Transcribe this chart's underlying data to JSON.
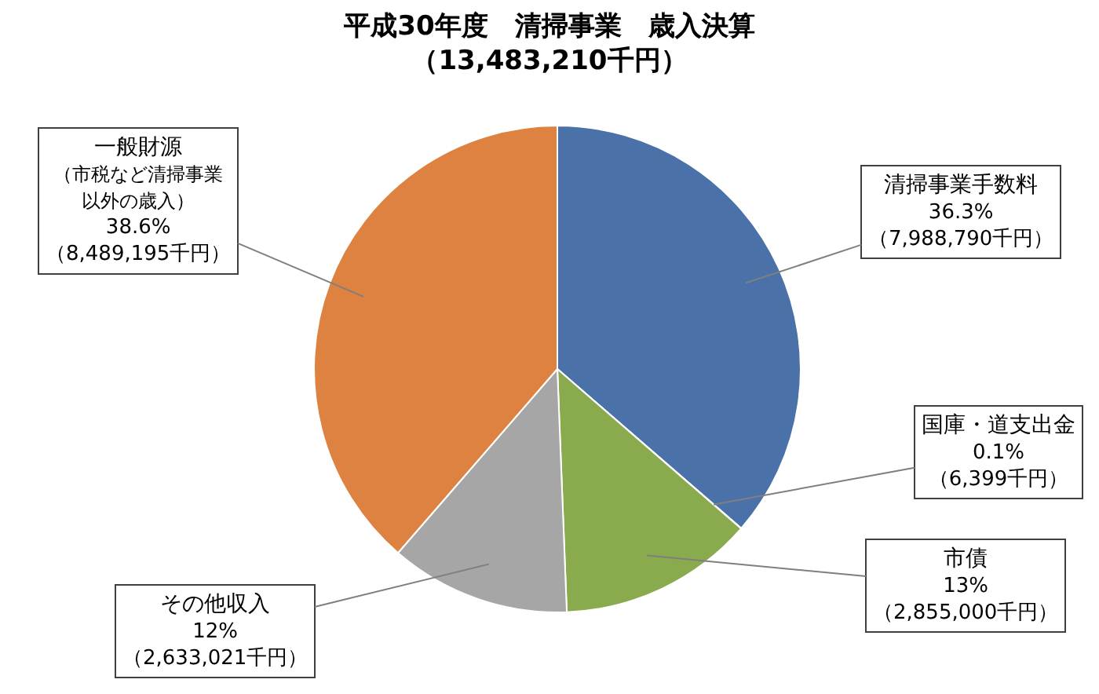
{
  "chart_data": {
    "type": "pie",
    "title": "平成30年度　清掃事業　歳入決算",
    "subtitle": "（13,483,210千円）",
    "categories": [
      "清掃事業手数料",
      "国庫・道支出金",
      "市債",
      "その他収入",
      "一般財源"
    ],
    "values": [
      7988790,
      6399,
      2855000,
      2633021,
      8489195
    ],
    "colors": [
      "#4a72a8",
      "#c0504d",
      "#8aaa4e",
      "#a6a6a6",
      "#dd8240"
    ],
    "value_labels": [
      "36.3%\n（7,988,790千円）",
      "0.1%\n（6,399千円）",
      "13%\n（2,855,000千円）",
      "12%\n（2,633,021千円）",
      "（市税など清掃事業以外の歳入）\n38.6%\n（8,489,195千円）"
    ],
    "legend": false
  }
}
